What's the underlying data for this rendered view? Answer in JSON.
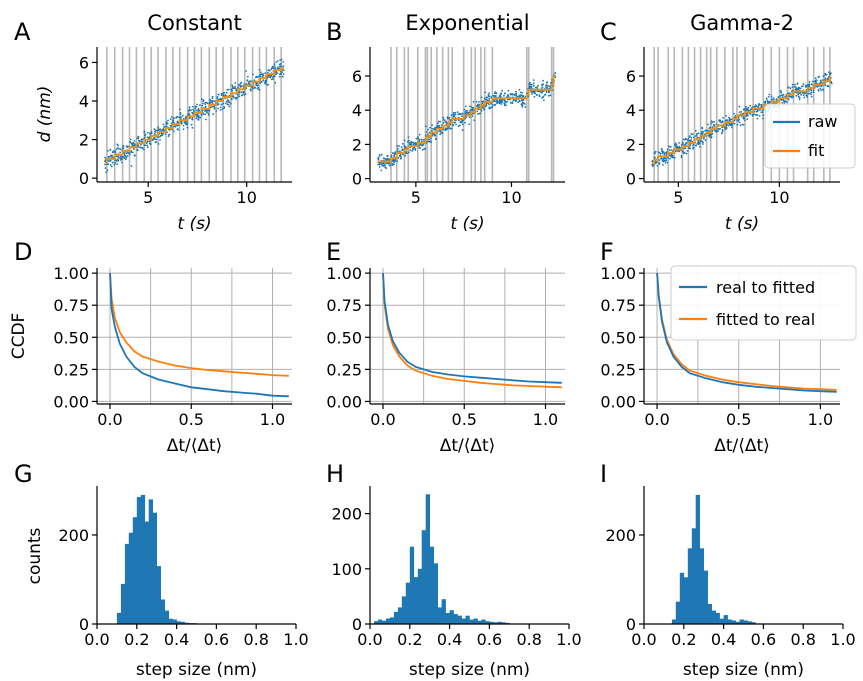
{
  "panels": [
    {
      "label": "A",
      "title": "Constant",
      "t_range": [
        2.8,
        11.9
      ],
      "step_times": [
        2.9,
        3.3,
        3.7,
        4.05,
        4.4,
        4.8,
        5.15,
        5.5,
        5.9,
        6.25,
        6.6,
        7.0,
        7.35,
        7.7,
        8.1,
        8.45,
        8.8,
        9.2,
        9.55,
        9.9,
        10.3,
        10.65,
        11.0,
        11.4,
        11.75
      ],
      "fit_levels": [
        0.8,
        1.0,
        1.2,
        1.4,
        1.6,
        1.8,
        2.0,
        2.2,
        2.4,
        2.6,
        2.8,
        3.0,
        3.2,
        3.4,
        3.6,
        3.8,
        4.0,
        4.2,
        4.4,
        4.6,
        4.8,
        5.0,
        5.2,
        5.4,
        5.6,
        5.7
      ]
    },
    {
      "label": "B",
      "title": "Exponential",
      "t_range": [
        3.0,
        12.3
      ],
      "step_times": [
        3.7,
        4.0,
        4.4,
        4.6,
        5.1,
        5.5,
        5.6,
        5.8,
        6.1,
        6.4,
        6.7,
        6.9,
        7.5,
        7.9,
        8.1,
        8.4,
        8.6,
        9.0,
        10.8,
        10.9,
        12.1,
        12.2
      ],
      "fit_levels": [
        1.0,
        1.2,
        1.5,
        1.7,
        1.9,
        2.1,
        2.3,
        2.5,
        2.7,
        2.9,
        3.1,
        3.3,
        3.5,
        3.7,
        3.9,
        4.1,
        4.3,
        4.5,
        4.7,
        4.9,
        5.2,
        5.5,
        6.0
      ]
    },
    {
      "label": "C",
      "title": "Gamma-2",
      "t_range": [
        3.7,
        12.6
      ],
      "step_times": [
        3.8,
        4.0,
        4.5,
        4.8,
        5.2,
        5.5,
        5.8,
        6.1,
        6.4,
        6.6,
        6.9,
        7.3,
        7.7,
        7.9,
        8.3,
        8.7,
        9.2,
        9.6,
        10.0,
        10.4,
        10.7,
        11.4,
        11.7,
        12.2,
        12.5
      ],
      "fit_levels": [
        0.9,
        1.1,
        1.3,
        1.5,
        1.7,
        1.9,
        2.1,
        2.3,
        2.5,
        2.7,
        2.9,
        3.1,
        3.3,
        3.5,
        3.7,
        3.9,
        4.1,
        4.3,
        4.5,
        4.7,
        4.9,
        5.1,
        5.3,
        5.5,
        5.7,
        5.9
      ]
    }
  ],
  "ccdf_panels": [
    {
      "label": "D",
      "real_to_fitted": [
        [
          0,
          1.0
        ],
        [
          0.01,
          0.72
        ],
        [
          0.03,
          0.58
        ],
        [
          0.06,
          0.45
        ],
        [
          0.1,
          0.35
        ],
        [
          0.15,
          0.27
        ],
        [
          0.2,
          0.22
        ],
        [
          0.3,
          0.17
        ],
        [
          0.4,
          0.14
        ],
        [
          0.5,
          0.11
        ],
        [
          0.6,
          0.095
        ],
        [
          0.7,
          0.08
        ],
        [
          0.8,
          0.07
        ],
        [
          0.9,
          0.06
        ],
        [
          1.0,
          0.045
        ],
        [
          1.1,
          0.04
        ]
      ],
      "fitted_to_real": [
        [
          0,
          1.0
        ],
        [
          0.01,
          0.8
        ],
        [
          0.03,
          0.65
        ],
        [
          0.06,
          0.54
        ],
        [
          0.1,
          0.46
        ],
        [
          0.15,
          0.39
        ],
        [
          0.2,
          0.35
        ],
        [
          0.3,
          0.31
        ],
        [
          0.4,
          0.28
        ],
        [
          0.5,
          0.26
        ],
        [
          0.6,
          0.245
        ],
        [
          0.7,
          0.235
        ],
        [
          0.8,
          0.225
        ],
        [
          0.9,
          0.215
        ],
        [
          1.0,
          0.205
        ],
        [
          1.1,
          0.2
        ]
      ]
    },
    {
      "label": "E",
      "real_to_fitted": [
        [
          0,
          1.0
        ],
        [
          0.01,
          0.78
        ],
        [
          0.03,
          0.6
        ],
        [
          0.06,
          0.47
        ],
        [
          0.1,
          0.38
        ],
        [
          0.15,
          0.31
        ],
        [
          0.2,
          0.27
        ],
        [
          0.3,
          0.23
        ],
        [
          0.4,
          0.21
        ],
        [
          0.5,
          0.195
        ],
        [
          0.6,
          0.185
        ],
        [
          0.7,
          0.175
        ],
        [
          0.8,
          0.165
        ],
        [
          0.9,
          0.155
        ],
        [
          1.0,
          0.15
        ],
        [
          1.1,
          0.145
        ]
      ],
      "fitted_to_real": [
        [
          0,
          1.0
        ],
        [
          0.01,
          0.75
        ],
        [
          0.03,
          0.57
        ],
        [
          0.06,
          0.44
        ],
        [
          0.1,
          0.35
        ],
        [
          0.15,
          0.28
        ],
        [
          0.2,
          0.24
        ],
        [
          0.3,
          0.2
        ],
        [
          0.4,
          0.175
        ],
        [
          0.5,
          0.16
        ],
        [
          0.6,
          0.145
        ],
        [
          0.7,
          0.135
        ],
        [
          0.8,
          0.125
        ],
        [
          0.9,
          0.12
        ],
        [
          1.0,
          0.115
        ],
        [
          1.1,
          0.11
        ]
      ]
    },
    {
      "label": "F",
      "real_to_fitted": [
        [
          0,
          1.0
        ],
        [
          0.01,
          0.82
        ],
        [
          0.03,
          0.62
        ],
        [
          0.06,
          0.46
        ],
        [
          0.1,
          0.35
        ],
        [
          0.15,
          0.27
        ],
        [
          0.2,
          0.22
        ],
        [
          0.3,
          0.18
        ],
        [
          0.4,
          0.15
        ],
        [
          0.5,
          0.13
        ],
        [
          0.6,
          0.115
        ],
        [
          0.7,
          0.105
        ],
        [
          0.8,
          0.095
        ],
        [
          0.9,
          0.085
        ],
        [
          1.0,
          0.08
        ],
        [
          1.1,
          0.075
        ]
      ],
      "fitted_to_real": [
        [
          0,
          1.0
        ],
        [
          0.01,
          0.83
        ],
        [
          0.03,
          0.64
        ],
        [
          0.06,
          0.48
        ],
        [
          0.1,
          0.37
        ],
        [
          0.15,
          0.29
        ],
        [
          0.2,
          0.24
        ],
        [
          0.3,
          0.2
        ],
        [
          0.4,
          0.17
        ],
        [
          0.5,
          0.15
        ],
        [
          0.6,
          0.135
        ],
        [
          0.7,
          0.12
        ],
        [
          0.8,
          0.11
        ],
        [
          0.9,
          0.1
        ],
        [
          1.0,
          0.095
        ],
        [
          1.1,
          0.09
        ]
      ]
    }
  ],
  "hist_panels": [
    {
      "label": "G",
      "ylim": [
        0,
        310
      ],
      "yticks": [
        0,
        200
      ],
      "bins": [
        0.11,
        0.13,
        0.15,
        0.17,
        0.19,
        0.21,
        0.23,
        0.25,
        0.27,
        0.29,
        0.31,
        0.33,
        0.35,
        0.37,
        0.39,
        0.41,
        0.43,
        0.45,
        0.47,
        0.49
      ],
      "counts": [
        25,
        90,
        180,
        205,
        240,
        285,
        290,
        230,
        280,
        250,
        130,
        55,
        30,
        12,
        10,
        6,
        5,
        3,
        2,
        2
      ]
    },
    {
      "label": "H",
      "ylim": [
        0,
        250
      ],
      "yticks": [
        0,
        100,
        200
      ],
      "bins": [
        0.03,
        0.05,
        0.07,
        0.09,
        0.11,
        0.13,
        0.15,
        0.17,
        0.19,
        0.21,
        0.23,
        0.25,
        0.27,
        0.29,
        0.31,
        0.33,
        0.35,
        0.37,
        0.39,
        0.41,
        0.43,
        0.45,
        0.47,
        0.49,
        0.51,
        0.53,
        0.55,
        0.57,
        0.59,
        0.61,
        0.63,
        0.65,
        0.67,
        0.69
      ],
      "counts": [
        5,
        8,
        6,
        10,
        12,
        22,
        30,
        50,
        75,
        140,
        85,
        100,
        170,
        235,
        140,
        110,
        30,
        45,
        20,
        25,
        18,
        15,
        10,
        15,
        8,
        10,
        6,
        8,
        5,
        4,
        3,
        4,
        3,
        2
      ]
    },
    {
      "label": "I",
      "ylim": [
        0,
        310
      ],
      "yticks": [
        0,
        200
      ],
      "bins": [
        0.15,
        0.17,
        0.19,
        0.21,
        0.23,
        0.25,
        0.27,
        0.29,
        0.31,
        0.33,
        0.35,
        0.37,
        0.39,
        0.41,
        0.43,
        0.45,
        0.47,
        0.49,
        0.51,
        0.53,
        0.55
      ],
      "counts": [
        10,
        50,
        115,
        105,
        170,
        215,
        290,
        170,
        120,
        45,
        30,
        25,
        12,
        20,
        10,
        8,
        5,
        10,
        8,
        6,
        4
      ]
    }
  ],
  "labels": {
    "ylabel_top": "d (nm)",
    "xlabel_top": "t (s)",
    "ylabel_mid": "CCDF",
    "xlabel_mid": "Δt/⟨Δt⟩",
    "ylabel_bot": "counts",
    "xlabel_bot": "step size (nm)"
  },
  "legends": {
    "top": [
      {
        "name": "raw",
        "color": "#1f77b4"
      },
      {
        "name": "fit",
        "color": "#ff7f0e"
      }
    ],
    "mid": [
      {
        "name": "real to fitted",
        "color": "#1f77b4"
      },
      {
        "name": "fitted to real",
        "color": "#ff7f0e"
      }
    ]
  },
  "colors": {
    "raw": "#1f77b4",
    "fit": "#e69522",
    "bar": "#1f77b4",
    "grid": "#b0b0b0",
    "vline": "#b8b8b8"
  },
  "chart_data": [
    {
      "type": "scatter",
      "title": "Constant",
      "xlabel": "t (s)",
      "ylabel": "d (nm)",
      "xlim": [
        2.4,
        12.3
      ],
      "ylim": [
        -0.2,
        6.8
      ],
      "xticks": [
        5,
        10
      ],
      "yticks": [
        0,
        2,
        4,
        6
      ]
    },
    {
      "type": "scatter",
      "title": "Exponential",
      "xlabel": "t (s)",
      "ylabel": "",
      "xlim": [
        2.6,
        12.8
      ],
      "ylim": [
        -0.2,
        7.7
      ],
      "xticks": [
        5,
        10
      ],
      "yticks": [
        0,
        2,
        4,
        6
      ]
    },
    {
      "type": "scatter",
      "title": "Gamma-2",
      "xlabel": "t (s)",
      "ylabel": "",
      "xlim": [
        3.3,
        13.0
      ],
      "ylim": [
        -0.2,
        7.7
      ],
      "xticks": [
        5,
        10
      ],
      "yticks": [
        0,
        2,
        4,
        6
      ]
    },
    {
      "type": "line",
      "xlabel": "Δt/⟨Δt⟩",
      "ylabel": "CCDF",
      "xlim": [
        -0.08,
        1.12
      ],
      "ylim": [
        -0.02,
        1.04
      ],
      "xticks": [
        0.0,
        0.5,
        1.0
      ],
      "yticks": [
        0.0,
        0.25,
        0.5,
        0.75,
        1.0
      ],
      "grid": true
    },
    {
      "type": "line",
      "xlabel": "Δt/⟨Δt⟩",
      "ylabel": "",
      "xlim": [
        -0.08,
        1.12
      ],
      "ylim": [
        -0.02,
        1.04
      ],
      "xticks": [
        0.0,
        0.5,
        1.0
      ],
      "yticks": [
        0.0,
        0.25,
        0.5,
        0.75,
        1.0
      ],
      "grid": true
    },
    {
      "type": "line",
      "xlabel": "Δt/⟨Δt⟩",
      "ylabel": "",
      "xlim": [
        -0.08,
        1.12
      ],
      "ylim": [
        -0.02,
        1.04
      ],
      "xticks": [
        0.0,
        0.5,
        1.0
      ],
      "yticks": [
        0.0,
        0.25,
        0.5,
        0.75,
        1.0
      ],
      "grid": true
    },
    {
      "type": "bar",
      "xlabel": "step size (nm)",
      "ylabel": "counts",
      "xlim": [
        0,
        1.0
      ],
      "xticks": [
        0.0,
        0.2,
        0.4,
        0.6,
        0.8,
        1.0
      ]
    },
    {
      "type": "bar",
      "xlabel": "step size (nm)",
      "ylabel": "",
      "xlim": [
        0,
        1.0
      ],
      "xticks": [
        0.0,
        0.2,
        0.4,
        0.6,
        0.8,
        1.0
      ]
    },
    {
      "type": "bar",
      "xlabel": "step size (nm)",
      "ylabel": "",
      "xlim": [
        0,
        1.0
      ],
      "xticks": [
        0.0,
        0.2,
        0.4,
        0.6,
        0.8,
        1.0
      ]
    }
  ]
}
